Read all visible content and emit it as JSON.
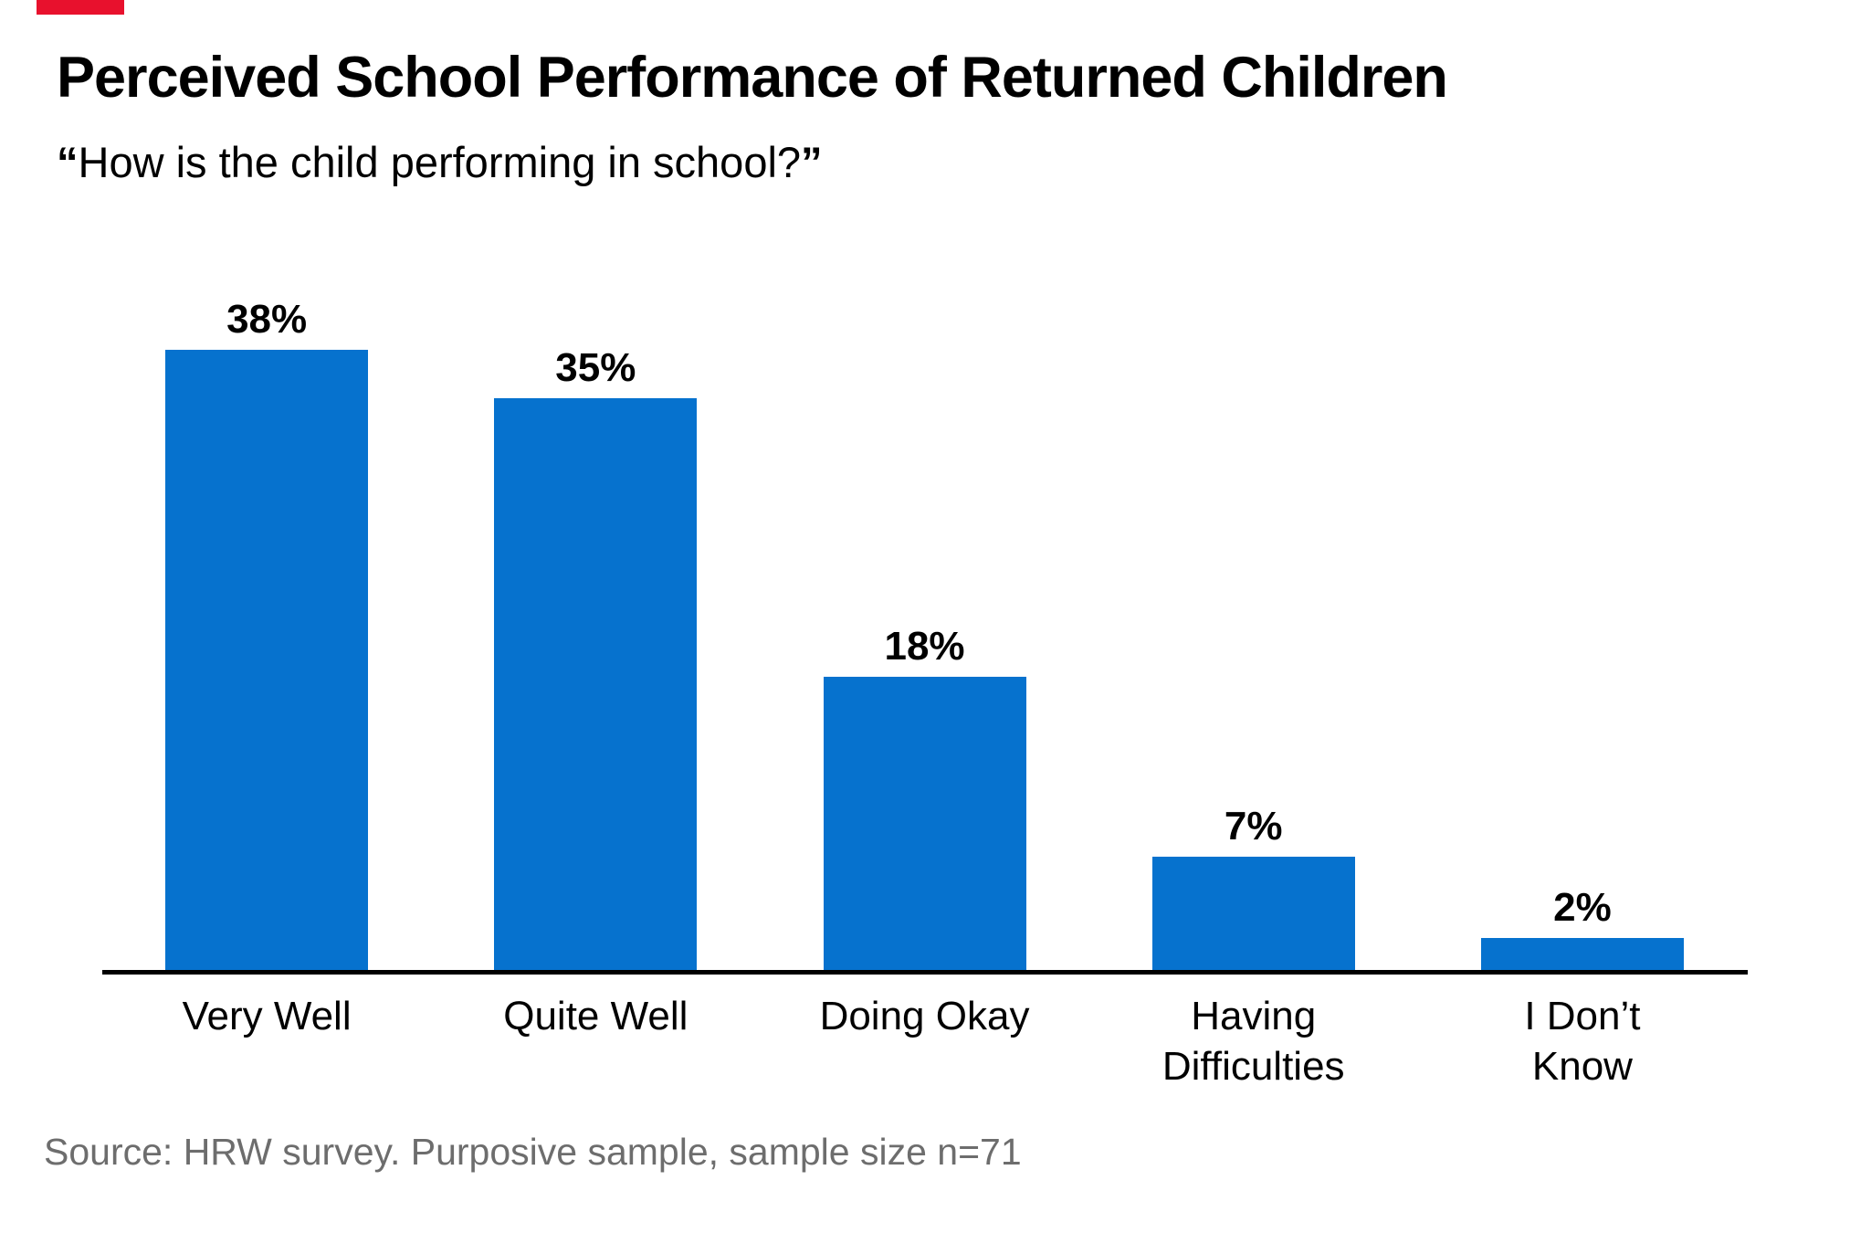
{
  "page": {
    "background_color": "#FFFFFF"
  },
  "brand": {
    "bar_color": "#E8112D"
  },
  "header": {
    "title": "Perceived School Performance of Returned Children",
    "subtitle_open_quote": "“",
    "subtitle_text": "How is the child performing in school?",
    "subtitle_close_quote": "”"
  },
  "chart_data": {
    "type": "bar",
    "title": "Perceived School Performance of Returned Children",
    "subtitle": "“How is the child performing in school?”",
    "categories": [
      "Very Well",
      "Quite Well",
      "Doing Okay",
      "Having Difficulties",
      "I Don’t Know"
    ],
    "category_lines": [
      [
        "Very Well"
      ],
      [
        "Quite Well"
      ],
      [
        "Doing Okay"
      ],
      [
        "Having",
        "Difficulties"
      ],
      [
        "I Don’t",
        "Know"
      ]
    ],
    "values": [
      38,
      35,
      18,
      7,
      2
    ],
    "value_labels": [
      "38%",
      "35%",
      "18%",
      "7%",
      "2%"
    ],
    "xlabel": "",
    "ylabel": "",
    "ylim": [
      0,
      40
    ],
    "grid": false,
    "legend": false,
    "bar_color": "#0672CE",
    "axis_color": "#000000",
    "value_label_color": "#000000"
  },
  "footer": {
    "source": "Source: HRW survey. Purposive sample, sample size n=71",
    "source_color": "#6D6D6D"
  }
}
